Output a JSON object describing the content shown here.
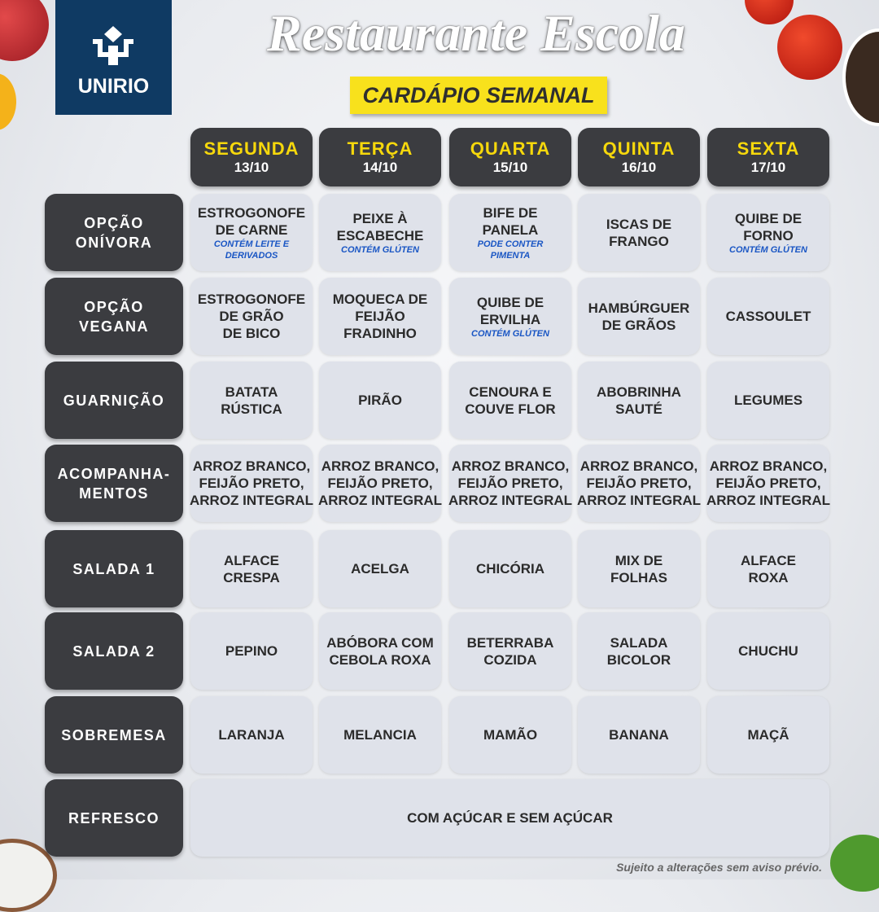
{
  "logo": {
    "name": "UNIRIO"
  },
  "title": "Restaurante Escola",
  "subtitle": "CARDÁPIO SEMANAL",
  "colors": {
    "header_bg": "#3b3c40",
    "day_text": "#f6d80c",
    "allergen_text": "#1a56c4",
    "logo_bg": "#0f3a63",
    "subtitle_bg": "#f8e11c"
  },
  "days": [
    {
      "name": "SEGUNDA",
      "date": "13/10"
    },
    {
      "name": "TERÇA",
      "date": "14/10"
    },
    {
      "name": "QUARTA",
      "date": "15/10"
    },
    {
      "name": "QUINTA",
      "date": "16/10"
    },
    {
      "name": "SEXTA",
      "date": "17/10"
    }
  ],
  "rows": [
    {
      "label": "OPÇÃO\nONÍVORA",
      "items": [
        {
          "name": "ESTROGONOFE\nDE CARNE",
          "note": "CONTÉM LEITE E\nDERIVADOS"
        },
        {
          "name": "PEIXE À\nESCABECHE",
          "note": "CONTÉM GLÚTEN"
        },
        {
          "name": "BIFE DE\nPANELA",
          "note": "PODE CONTER\nPIMENTA"
        },
        {
          "name": "ISCAS DE\nFRANGO"
        },
        {
          "name": "QUIBE DE\nFORNO",
          "note": "CONTÉM GLÚTEN"
        }
      ]
    },
    {
      "label": "OPÇÃO\nVEGANA",
      "items": [
        {
          "name": "ESTROGONOFE\nDE GRÃO\nDE BICO"
        },
        {
          "name": "MOQUECA DE\nFEIJÃO\nFRADINHO"
        },
        {
          "name": "QUIBE DE\nERVILHA",
          "note": "CONTÉM GLÚTEN"
        },
        {
          "name": "HAMBÚRGUER\nDE GRÃOS"
        },
        {
          "name": "CASSOULET"
        }
      ]
    },
    {
      "label": "GUARNIÇÃO",
      "items": [
        {
          "name": "BATATA\nRÚSTICA"
        },
        {
          "name": "PIRÃO"
        },
        {
          "name": "CENOURA E\nCOUVE FLOR"
        },
        {
          "name": "ABOBRINHA\nSAUTÉ"
        },
        {
          "name": "LEGUMES"
        }
      ]
    },
    {
      "label": "ACOMPANHA-\nMENTOS",
      "items": [
        {
          "name": "ARROZ BRANCO,\nFEIJÃO PRETO,\nARROZ INTEGRAL"
        },
        {
          "name": "ARROZ BRANCO,\nFEIJÃO PRETO,\nARROZ INTEGRAL"
        },
        {
          "name": "ARROZ BRANCO,\nFEIJÃO PRETO,\nARROZ INTEGRAL"
        },
        {
          "name": "ARROZ BRANCO,\nFEIJÃO PRETO,\nARROZ INTEGRAL"
        },
        {
          "name": "ARROZ BRANCO,\nFEIJÃO PRETO,\nARROZ INTEGRAL"
        }
      ]
    },
    {
      "label": "SALADA 1",
      "items": [
        {
          "name": "ALFACE\nCRESPA"
        },
        {
          "name": "ACELGA"
        },
        {
          "name": "CHICÓRIA"
        },
        {
          "name": "MIX DE\nFOLHAS"
        },
        {
          "name": "ALFACE\nROXA"
        }
      ]
    },
    {
      "label": "SALADA 2",
      "items": [
        {
          "name": "PEPINO"
        },
        {
          "name": "ABÓBORA COM\nCEBOLA ROXA"
        },
        {
          "name": "BETERRABA\nCOZIDA"
        },
        {
          "name": "SALADA\nBICOLOR"
        },
        {
          "name": "CHUCHU"
        }
      ]
    },
    {
      "label": "SOBREMESA",
      "items": [
        {
          "name": "LARANJA"
        },
        {
          "name": "MELANCIA"
        },
        {
          "name": "MAMÃO"
        },
        {
          "name": "BANANA"
        },
        {
          "name": "MAÇÃ"
        }
      ]
    },
    {
      "label": "REFRESCO",
      "items": [
        {
          "name": "COM AÇÚCAR E SEM AÇÚCAR",
          "span": true
        }
      ]
    }
  ],
  "footer": "Sujeito a alterações sem aviso prévio."
}
